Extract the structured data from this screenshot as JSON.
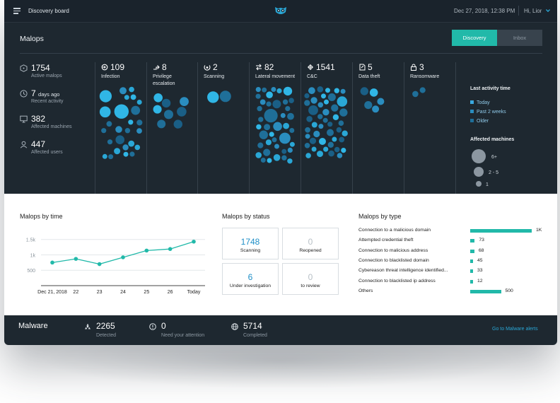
{
  "topbar": {
    "title": "Discovery board",
    "date": "Dec 27, 2018, 12:38 PM",
    "user": "Hi, Lior"
  },
  "malops": {
    "heading": "Malops",
    "tabs": [
      {
        "label": "Discovery",
        "active": true
      },
      {
        "label": "Inbox",
        "active": false
      }
    ],
    "summary": [
      {
        "value": "1754",
        "suffix": "",
        "label": "Active malops",
        "icon": "shield-icon"
      },
      {
        "value": "7",
        "suffix": "days ago",
        "label": "Recent activity",
        "icon": "clock-icon"
      },
      {
        "value": "382",
        "suffix": "",
        "label": "Affected machines",
        "icon": "monitor-icon"
      },
      {
        "value": "447",
        "suffix": "",
        "label": "Affected users",
        "icon": "user-icon"
      }
    ],
    "categories": [
      {
        "count": "109",
        "name": "Infection",
        "icon": "infection-icon"
      },
      {
        "count": "8",
        "name": "Privilege escalation",
        "icon": "privilege-icon"
      },
      {
        "count": "2",
        "name": "Scanning",
        "icon": "scanning-icon"
      },
      {
        "count": "82",
        "name": "Lateral movement",
        "icon": "lateral-icon"
      },
      {
        "count": "1541",
        "name": "C&C",
        "icon": "cnc-icon"
      },
      {
        "count": "5",
        "name": "Data theft",
        "icon": "data-theft-icon"
      },
      {
        "count": "3",
        "name": "Ransomware",
        "icon": "lock-icon"
      }
    ],
    "legend": {
      "activity_title": "Last activity time",
      "activity": [
        {
          "label": "Today",
          "color": "#3aa9e0"
        },
        {
          "label": "Past 2 weeks",
          "color": "#2a8dbf"
        },
        {
          "label": "Older",
          "color": "#1f6f99"
        }
      ],
      "machines_title": "Affected machines",
      "machines": [
        "6+",
        "2 - 5",
        "1"
      ]
    }
  },
  "malops_by_time": {
    "title": "Malops by time",
    "chart_data": {
      "type": "line",
      "categories": [
        "Dec 21, 2018",
        "22",
        "23",
        "24",
        "25",
        "26",
        "Today"
      ],
      "values": [
        750,
        870,
        700,
        920,
        1140,
        1190,
        1430
      ],
      "ytick_labels": [
        "1.5k",
        "1k",
        "500"
      ],
      "yticks": [
        1500,
        1000,
        500
      ],
      "ylim": [
        0,
        1700
      ],
      "grid": true
    }
  },
  "malops_by_status": {
    "title": "Malops by status",
    "items": [
      {
        "value": "1748",
        "label": "Scanning",
        "highlight": true
      },
      {
        "value": "0",
        "label": "Reopened",
        "highlight": false
      },
      {
        "value": "6",
        "label": "Under investigation",
        "highlight": true
      },
      {
        "value": "0",
        "label": "to review",
        "highlight": false
      }
    ]
  },
  "malops_by_type": {
    "title": "Malops by type",
    "items": [
      {
        "label": "Connection to a malicious domain",
        "value": "1K",
        "n": 1000
      },
      {
        "label": "Attempted credential theft",
        "value": "73",
        "n": 73
      },
      {
        "label": "Connection to malicious address",
        "value": "68",
        "n": 68
      },
      {
        "label": "Connection to blacklisted domain",
        "value": "45",
        "n": 45
      },
      {
        "label": "Cybereason threat intelligence identified...",
        "value": "33",
        "n": 33
      },
      {
        "label": "Connection to blacklisted ip address",
        "value": "12",
        "n": 12
      },
      {
        "label": "Others",
        "value": "500",
        "n": 500
      }
    ]
  },
  "malware": {
    "title": "Malware",
    "stats": [
      {
        "value": "2265",
        "label": "Detected",
        "icon": "biohazard-icon"
      },
      {
        "value": "0",
        "label": "Need your attention",
        "icon": "alert-icon"
      },
      {
        "value": "5714",
        "label": "Completed",
        "icon": "globe-icon"
      }
    ],
    "link": "Go to Malware alerts"
  }
}
